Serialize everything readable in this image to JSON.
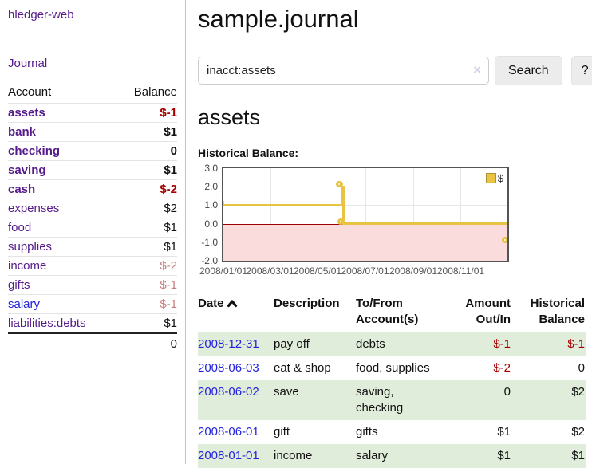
{
  "app": {
    "brand": "hledger-web",
    "nav_journal": "Journal"
  },
  "sidebar": {
    "header": {
      "account": "Account",
      "balance": "Balance"
    },
    "accounts": [
      {
        "name": "assets",
        "depth": 1,
        "bold": true,
        "balance": "$-1",
        "neg": "strong"
      },
      {
        "name": "bank",
        "depth": 2,
        "bold": true,
        "balance": "$1"
      },
      {
        "name": "checking",
        "depth": 3,
        "bold": true,
        "balance": "0"
      },
      {
        "name": "saving",
        "depth": 3,
        "bold": true,
        "balance": "$1"
      },
      {
        "name": "cash",
        "depth": 2,
        "bold": true,
        "balance": "$-2",
        "neg": "strong"
      },
      {
        "name": "expenses",
        "depth": 1,
        "bold": false,
        "balance": "$2"
      },
      {
        "name": "food",
        "depth": 2,
        "bold": false,
        "balance": "$1"
      },
      {
        "name": "supplies",
        "depth": 2,
        "bold": false,
        "balance": "$1"
      },
      {
        "name": "income",
        "depth": 1,
        "bold": false,
        "balance": "$-2",
        "neg": "muted"
      },
      {
        "name": "gifts",
        "depth": 2,
        "bold": false,
        "balance": "$-1",
        "neg": "muted"
      },
      {
        "name": "salary",
        "depth": 2,
        "bold": false,
        "balance": "$-1",
        "neg": "muted",
        "link": "blue"
      },
      {
        "name": "liabilities:debts",
        "depth": 1,
        "bold": false,
        "balance": "$1"
      }
    ],
    "total": "0"
  },
  "header": {
    "title": "sample.journal"
  },
  "search": {
    "value": "inacct:assets",
    "clear_icon": "×",
    "button_label": "Search",
    "help_label": "?"
  },
  "account_view": {
    "heading": "assets",
    "chart_title": "Historical Balance:"
  },
  "chart_data": {
    "type": "line",
    "step": true,
    "title": "Historical Balance",
    "series": [
      {
        "name": "$",
        "color": "#e9c344",
        "points": [
          [
            "2008-01-01",
            1
          ],
          [
            "2008-06-01",
            2
          ],
          [
            "2008-06-02",
            2
          ],
          [
            "2008-06-03",
            0
          ],
          [
            "2008-12-31",
            -1
          ]
        ]
      }
    ],
    "xlim": [
      "2008-01-01",
      "2008-12-31"
    ],
    "ylim": [
      -2.0,
      3.0
    ],
    "yticks": [
      "3.0",
      "2.0",
      "1.0",
      "0.0",
      "-1.0",
      "-2.0"
    ],
    "xticks": [
      {
        "label": "2008/01/01",
        "date": "2008-01-01"
      },
      {
        "label": "2008/03/01",
        "date": "2008-03-01"
      },
      {
        "label": "2008/05/01",
        "date": "2008-05-01"
      },
      {
        "label": "2008/07/01",
        "date": "2008-07-01"
      },
      {
        "label": "2008/09/01",
        "date": "2008-09-01"
      },
      {
        "label": "2008/11/01",
        "date": "2008-11-01"
      }
    ],
    "legend": {
      "label": "$",
      "position": "top-right"
    },
    "grid": true,
    "negative_region_color": "#fbdcdc",
    "zero_line_color": "#9a0000"
  },
  "register": {
    "headers": {
      "date": "Date",
      "description": "Description",
      "tofrom": "To/From Account(s)",
      "amount": "Amount Out/In",
      "balance": "Historical Balance"
    },
    "sort_icon": "chevron-up",
    "rows": [
      {
        "date": "2008-12-31",
        "description": "pay off",
        "accounts": "debts",
        "amount": "$-1",
        "balance": "$-1",
        "amount_neg": true,
        "balance_neg": true
      },
      {
        "date": "2008-06-03",
        "description": "eat & shop",
        "accounts": "food, supplies",
        "amount": "$-2",
        "balance": "0",
        "amount_neg": true,
        "balance_neg": false
      },
      {
        "date": "2008-06-02",
        "description": "save",
        "accounts": "saving, checking",
        "amount": "0",
        "balance": "$2",
        "amount_neg": false,
        "balance_neg": false
      },
      {
        "date": "2008-06-01",
        "description": "gift",
        "accounts": "gifts",
        "amount": "$1",
        "balance": "$2",
        "amount_neg": false,
        "balance_neg": false
      },
      {
        "date": "2008-01-01",
        "description": "income",
        "accounts": "salary",
        "amount": "$1",
        "balance": "$1",
        "amount_neg": false,
        "balance_neg": false
      }
    ]
  },
  "colors": {
    "link_purple": "#551a8b",
    "link_blue": "#2323dd",
    "negative_strong": "#a40000",
    "negative_muted": "#c97f7f",
    "row_stripe_green": "#e1eddb",
    "chart_line_gold": "#e9c344",
    "chart_negative_fill": "#fbdcdc",
    "chart_zero_line": "#9a0000",
    "button_bg": "#ececec"
  }
}
